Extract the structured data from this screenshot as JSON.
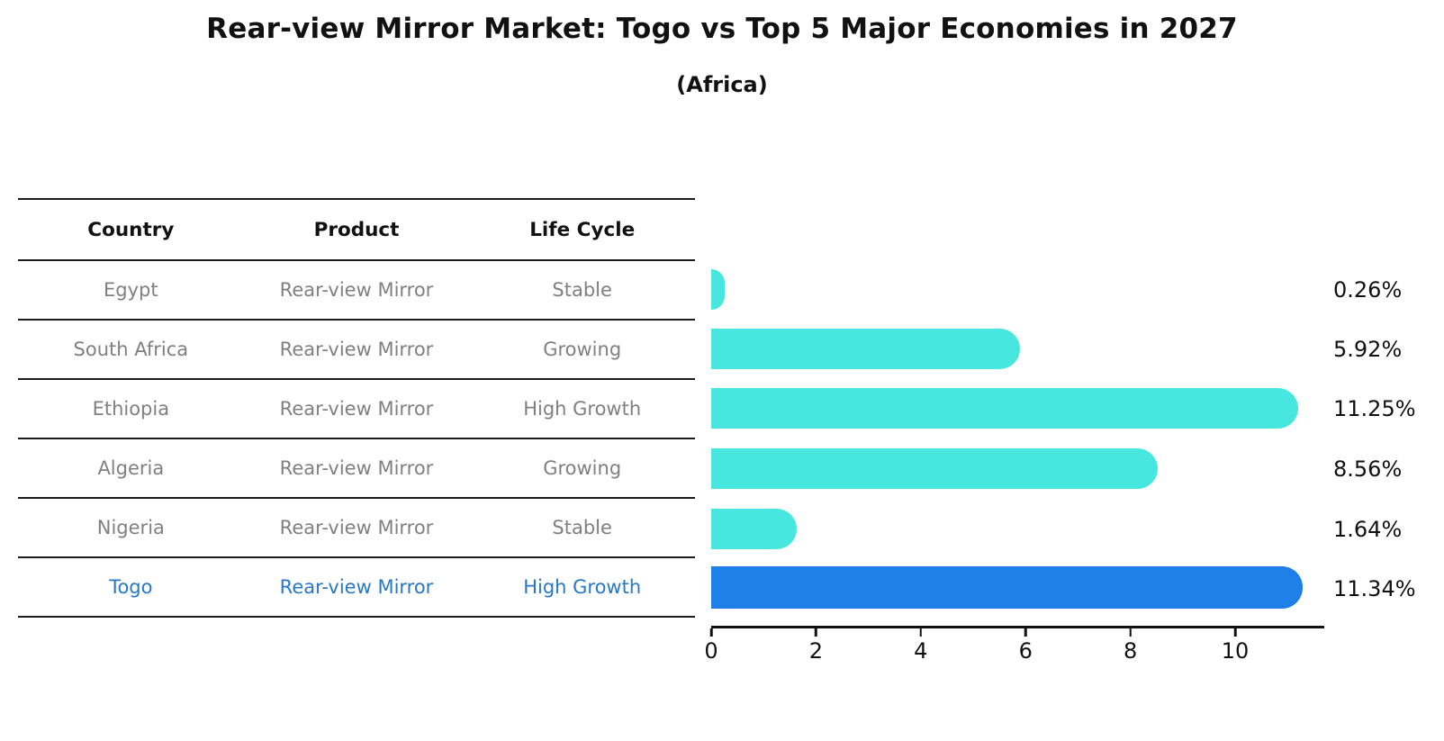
{
  "title": "Rear-view Mirror Market: Togo vs Top 5 Major Economies in 2027",
  "subtitle": "(Africa)",
  "table": {
    "headers": {
      "country": "Country",
      "product": "Product",
      "life_cycle": "Life Cycle"
    },
    "rows": [
      {
        "country": "Egypt",
        "product": "Rear-view Mirror",
        "life_cycle": "Stable"
      },
      {
        "country": "South Africa",
        "product": "Rear-view Mirror",
        "life_cycle": "Growing"
      },
      {
        "country": "Ethiopia",
        "product": "Rear-view Mirror",
        "life_cycle": "High Growth"
      },
      {
        "country": "Algeria",
        "product": "Rear-view Mirror",
        "life_cycle": "Growing"
      },
      {
        "country": "Nigeria",
        "product": "Rear-view Mirror",
        "life_cycle": "Stable"
      },
      {
        "country": "Togo",
        "product": "Rear-view Mirror",
        "life_cycle": "High Growth"
      }
    ],
    "highlighted_row": "Togo"
  },
  "chart_data": {
    "type": "bar",
    "orientation": "horizontal",
    "title": "Rear-view Mirror Market: Togo vs Top 5 Major Economies in 2027",
    "subtitle": "(Africa)",
    "categories": [
      "Egypt",
      "South Africa",
      "Ethiopia",
      "Algeria",
      "Nigeria",
      "Togo"
    ],
    "values": [
      0.26,
      5.92,
      11.25,
      8.56,
      1.64,
      11.34
    ],
    "value_labels": [
      "0.26%",
      "5.92%",
      "11.25%",
      "8.56%",
      "1.64%",
      "11.34%"
    ],
    "xticks": [
      0,
      2,
      4,
      6,
      8,
      10
    ],
    "xlim": [
      0,
      11.7
    ],
    "grid": false,
    "legend": "none",
    "bar_color": "#47e7df",
    "highlight_bar_color": "#1e80e8",
    "highlight_index": 5
  },
  "colors": {
    "header_text": "#111111",
    "row_text": "#808080",
    "highlight_text": "#2878c8",
    "value_text": "#111111",
    "axis": "#111111"
  }
}
